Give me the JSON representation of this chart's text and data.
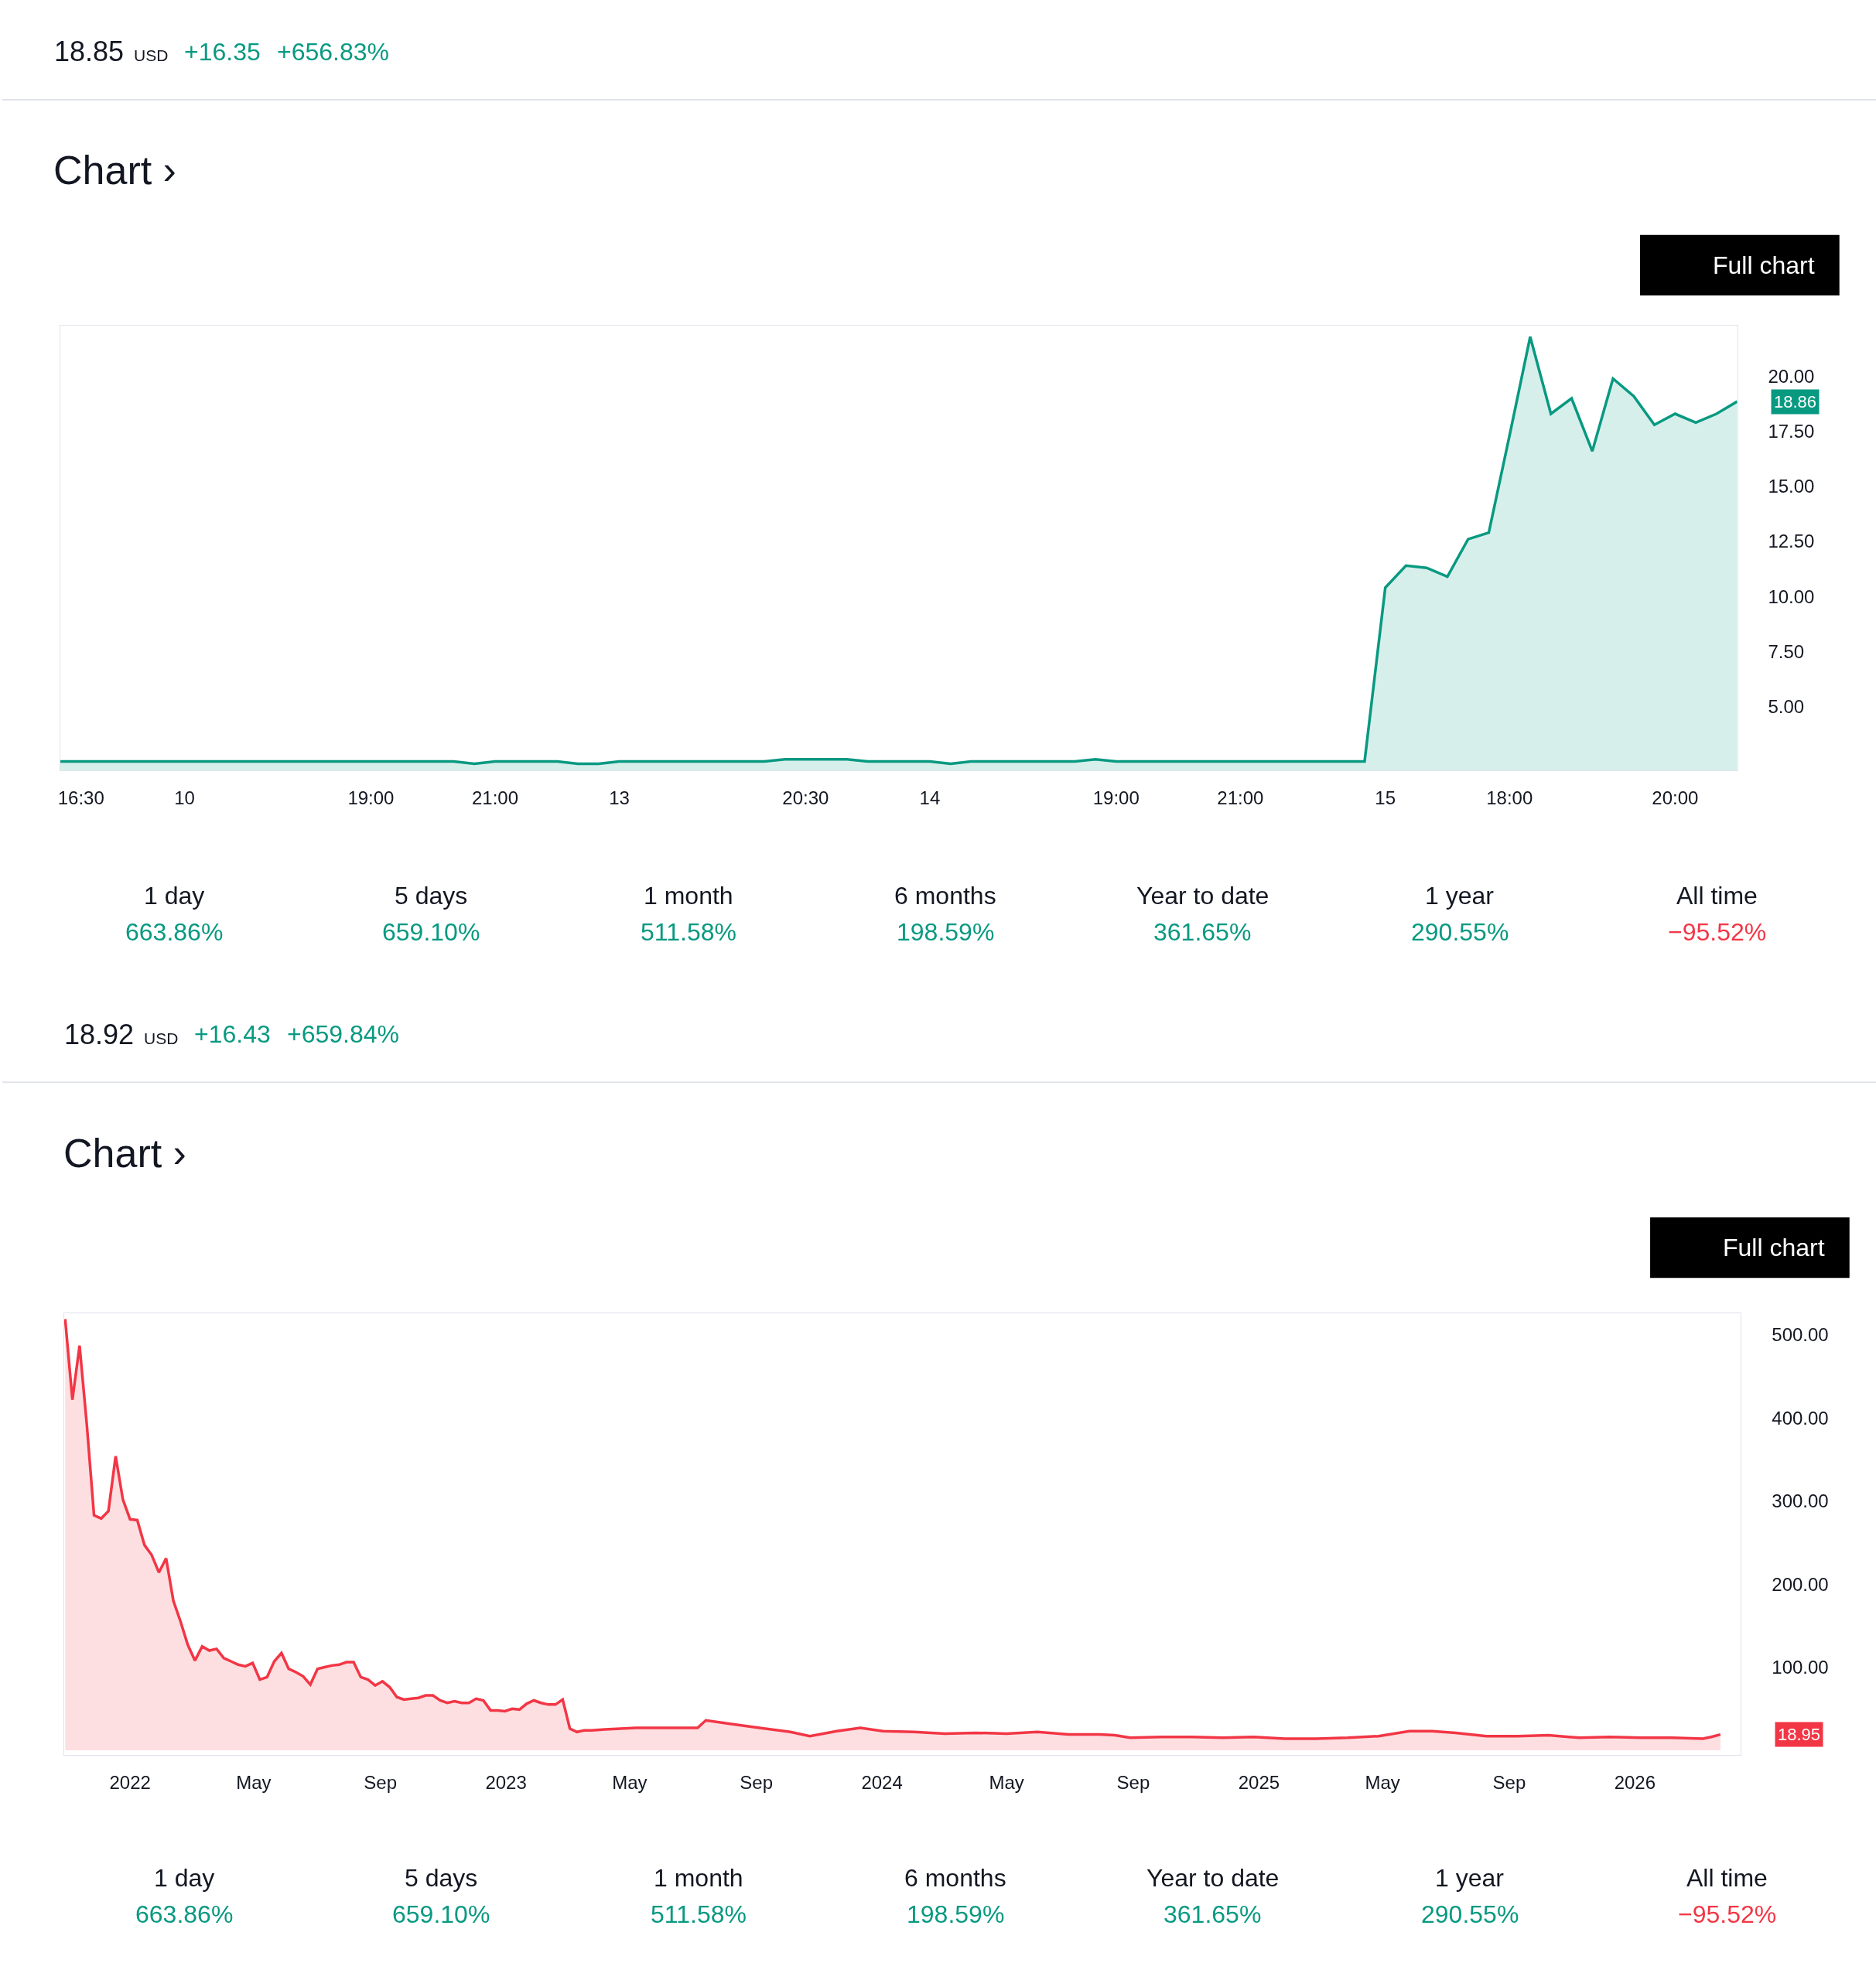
{
  "chart_data": [
    {
      "type": "area",
      "title": "Chart ›",
      "annotations": [
        "18.85",
        "USD",
        "+16.35",
        "+656.83%",
        "Full chart",
        "1 day",
        "663.86%",
        "5 days",
        "659.10%",
        "1 month",
        "511.58%",
        "6 months",
        "198.59%",
        "Year to date",
        "361.65%",
        "1 year",
        "290.55%",
        "All time",
        "−95.52%",
        "18.86"
      ],
      "categories": [
        null,
        "16:30",
        null,
        null,
        null,
        null,
        "10",
        null,
        null,
        null,
        null,
        null,
        null,
        null,
        null,
        "19:00",
        null,
        null,
        null,
        null,
        null,
        "21:00",
        null,
        null,
        null,
        null,
        null,
        "13",
        null,
        null,
        null,
        null,
        null,
        null,
        null,
        null,
        "20:30",
        null,
        null,
        null,
        null,
        null,
        "14",
        null,
        null,
        null,
        null,
        null,
        null,
        null,
        null,
        "19:00",
        null,
        null,
        null,
        null,
        null,
        "21:00",
        null,
        null,
        null,
        null,
        null,
        null,
        "15",
        null,
        null,
        null,
        null,
        null,
        "18:00",
        null,
        null,
        null,
        null,
        null,
        null,
        null,
        "20:00",
        null,
        null,
        null
      ],
      "series": [
        {
          "color": "#089981",
          "values": [
            2.5,
            2.5,
            2.5,
            2.5,
            2.5,
            2.5,
            2.5,
            2.5,
            2.5,
            2.5,
            2.5,
            2.5,
            2.5,
            2.5,
            2.5,
            2.5,
            2.5,
            2.5,
            2.5,
            2.5,
            2.4,
            2.5,
            2.5,
            2.5,
            2.5,
            2.4,
            2.4,
            2.5,
            2.5,
            2.5,
            2.5,
            2.5,
            2.5,
            2.5,
            2.5,
            2.6,
            2.6,
            2.6,
            2.6,
            2.5,
            2.5,
            2.5,
            2.5,
            2.4,
            2.5,
            2.5,
            2.5,
            2.5,
            2.5,
            2.5,
            2.6,
            2.5,
            2.5,
            2.5,
            2.5,
            2.5,
            2.5,
            2.5,
            2.5,
            2.5,
            2.5,
            2.5,
            2.5,
            2.5,
            10.4,
            11.4,
            11.3,
            10.9,
            12.6,
            12.9,
            17.3,
            21.8,
            18.3,
            19.0,
            16.6,
            19.9,
            19.1,
            17.8,
            18.3,
            17.9,
            18.3,
            18.86
          ]
        }
      ],
      "ylim": [
        2.1,
        22.3
      ],
      "grid": false,
      "yticks": [
        {
          "value": 5,
          "label": "5.00"
        },
        {
          "value": 7.5,
          "label": "7.50"
        },
        {
          "value": 10,
          "label": "10.00"
        },
        {
          "value": 12.5,
          "label": "12.50"
        },
        {
          "value": 15,
          "label": "15.00"
        },
        {
          "value": 17.5,
          "label": "17.50"
        },
        {
          "value": 20,
          "label": "20.00"
        }
      ]
    },
    {
      "type": "area",
      "title": "Chart ›",
      "annotations": [
        "18.92",
        "USD",
        "+16.43",
        "+659.84%",
        "Full chart",
        "1 day",
        "663.86%",
        "5 days",
        "659.10%",
        "1 month",
        "511.58%",
        "6 months",
        "198.59%",
        "Year to date",
        "361.65%",
        "1 year",
        "290.55%",
        "All time",
        "−95.52%",
        "18.95"
      ],
      "x": [
        "2021-10-30",
        "2021-11-06",
        "2021-11-13",
        "2021-11-20",
        "2021-11-27",
        "2021-12-04",
        "2021-12-11",
        "2021-12-18",
        "2021-12-25",
        "2022-01-01",
        "2022-01-08",
        "2022-01-15",
        "2022-01-22",
        "2022-01-29",
        "2022-02-05",
        "2022-02-12",
        "2022-02-19",
        "2022-02-26",
        "2022-03-05",
        "2022-03-12",
        "2022-03-19",
        "2022-03-26",
        "2022-04-02",
        "2022-04-09",
        "2022-04-16",
        "2022-04-23",
        "2022-04-30",
        "2022-05-07",
        "2022-05-14",
        "2022-05-21",
        "2022-05-28",
        "2022-06-04",
        "2022-06-11",
        "2022-06-18",
        "2022-06-25",
        "2022-07-02",
        "2022-07-09",
        "2022-07-16",
        "2022-07-23",
        "2022-07-30",
        "2022-08-06",
        "2022-08-13",
        "2022-08-20",
        "2022-08-27",
        "2022-09-03",
        "2022-09-10",
        "2022-09-17",
        "2022-09-24",
        "2022-10-01",
        "2022-10-08",
        "2022-10-15",
        "2022-10-22",
        "2022-10-29",
        "2022-11-05",
        "2022-11-12",
        "2022-11-19",
        "2022-11-26",
        "2022-12-03",
        "2022-12-10",
        "2022-12-17",
        "2022-12-24",
        "2022-12-31",
        "2023-01-07",
        "2023-01-14",
        "2023-01-21",
        "2023-01-28",
        "2023-02-04",
        "2023-02-11",
        "2023-02-18",
        "2023-02-25",
        "2023-03-04",
        "2023-03-11",
        "2023-03-18",
        "2023-03-25",
        "2023-04-07",
        "2023-05-07",
        "2023-06-06",
        "2023-07-06",
        "2023-07-14",
        "2023-08-05",
        "2023-09-04",
        "2023-10-04",
        "2023-10-23",
        "2023-11-18",
        "2023-12-11",
        "2024-01-02",
        "2024-02-01",
        "2024-03-02",
        "2024-04-01",
        "2024-05-01",
        "2024-05-31",
        "2024-06-30",
        "2024-07-30",
        "2024-08-14",
        "2024-08-29",
        "2024-09-28",
        "2024-10-28",
        "2024-11-27",
        "2024-12-27",
        "2025-01-26",
        "2025-02-26",
        "2025-03-28",
        "2025-04-27",
        "2025-05-27",
        "2025-06-18",
        "2025-07-11",
        "2025-08-10",
        "2025-09-09",
        "2025-10-09",
        "2025-11-08",
        "2025-12-08",
        "2026-01-07",
        "2026-02-06",
        "2026-03-08",
        "2026-03-16",
        "2026-03-25"
      ],
      "series": [
        {
          "color": "#f23645",
          "values": [
            519,
            422,
            487,
            392,
            283,
            279,
            288,
            354,
            302,
            278,
            277,
            247,
            235,
            214,
            231,
            180,
            155,
            127,
            108,
            125,
            120,
            122,
            111,
            107,
            103,
            101,
            105,
            85,
            88,
            107,
            117,
            98,
            94,
            89,
            79,
            98,
            100,
            102,
            103,
            106,
            106,
            88,
            85,
            78,
            83,
            76,
            64,
            61,
            62,
            63,
            66,
            66,
            60,
            57,
            59,
            57,
            57,
            62,
            60,
            48,
            48,
            47,
            50,
            49,
            56,
            60,
            57,
            55,
            55,
            61,
            26,
            22,
            24,
            24,
            25,
            27,
            27,
            27,
            36,
            32,
            27,
            22,
            17,
            23,
            27,
            23,
            22,
            20,
            21,
            20,
            22,
            19,
            19,
            18,
            15,
            16,
            16,
            15,
            16,
            14,
            14,
            15,
            17,
            23,
            23,
            21,
            17,
            17,
            18,
            15,
            16,
            15,
            15,
            14,
            16,
            18.95
          ]
        }
      ],
      "xlim": [
        "2021-10-29",
        "2026-04-14"
      ],
      "ylim": [
        -6,
        526
      ],
      "grid": false,
      "xticks": [
        {
          "value": "2022-01-01",
          "label": "2022"
        },
        {
          "value": "2022-05-01",
          "label": "May"
        },
        {
          "value": "2022-09-01",
          "label": "Sep"
        },
        {
          "value": "2023-01-01",
          "label": "2023"
        },
        {
          "value": "2023-05-01",
          "label": "May"
        },
        {
          "value": "2023-09-01",
          "label": "Sep"
        },
        {
          "value": "2024-01-01",
          "label": "2024"
        },
        {
          "value": "2024-05-01",
          "label": "May"
        },
        {
          "value": "2024-09-01",
          "label": "Sep"
        },
        {
          "value": "2025-01-01",
          "label": "2025"
        },
        {
          "value": "2025-05-01",
          "label": "May"
        },
        {
          "value": "2025-09-01",
          "label": "Sep"
        },
        {
          "value": "2026-01-01",
          "label": "2026"
        }
      ],
      "yticks": [
        {
          "value": 100,
          "label": "100.00"
        },
        {
          "value": 200,
          "label": "200.00"
        },
        {
          "value": 300,
          "label": "300.00"
        },
        {
          "value": 400,
          "label": "400.00"
        },
        {
          "value": 500,
          "label": "500.00"
        }
      ]
    }
  ]
}
